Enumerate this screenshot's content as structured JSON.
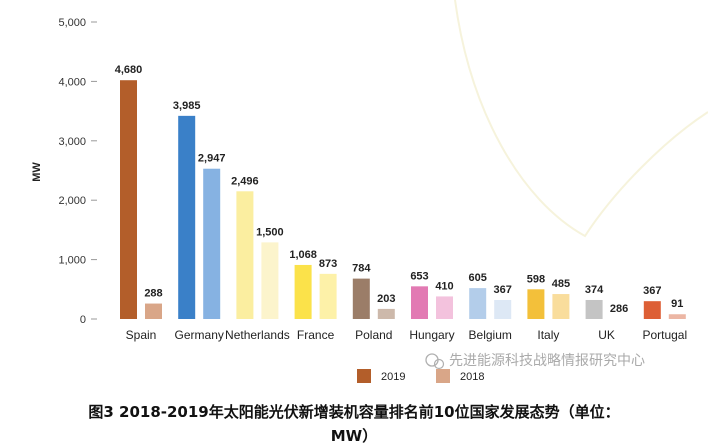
{
  "chart_data": {
    "type": "bar",
    "title": "图3 2018-2019年太阳能光伏新增装机容量排名前10位国家发展态势（单位：MW）",
    "ylabel": "MW",
    "xlabel": "",
    "ylim": [
      0,
      5000
    ],
    "yticks": [
      0,
      1000,
      2000,
      3000,
      4000,
      5000
    ],
    "ytick_labels": [
      "0",
      "1,000",
      "2,000",
      "3,000",
      "4,000",
      "5,000"
    ],
    "categories": [
      "Spain",
      "Germany",
      "Netherlands",
      "France",
      "Poland",
      "Hungary",
      "Belgium",
      "Italy",
      "UK",
      "Portugal"
    ],
    "series": [
      {
        "name": "2019",
        "values": [
          4680,
          3985,
          2496,
          1068,
          784,
          653,
          605,
          598,
          374,
          367
        ],
        "labels": [
          "4,680",
          "3,985",
          "2,496",
          "1,068",
          "784",
          "653",
          "605",
          "598",
          "374",
          "367"
        ],
        "colors": [
          "#b35e2a",
          "#3a80c8",
          "#fbeea0",
          "#fbe24a",
          "#9b7d68",
          "#e27ab3",
          "#b3cdea",
          "#f3c03a",
          "#c4c4c4",
          "#dd5f35"
        ],
        "bar_values": [
          4020,
          3420,
          2150,
          910,
          680,
          550,
          520,
          500,
          320,
          300
        ]
      },
      {
        "name": "2018",
        "values": [
          288,
          2947,
          1500,
          873,
          203,
          410,
          367,
          485,
          286,
          91
        ],
        "labels": [
          "288",
          "2,947",
          "1,500",
          "873",
          "203",
          "410",
          "367",
          "485",
          "286",
          "91"
        ],
        "colors": [
          "#d9a688",
          "#86b2e2",
          "#fcf4cc",
          "#fdf1a8",
          "#cdb9ab",
          "#f3c2dd",
          "#dde8f5",
          "#f9dd9c",
          "#e6e6e6",
          "#ecb6a4"
        ],
        "bar_values": [
          260,
          2530,
          1290,
          760,
          170,
          380,
          320,
          420,
          0,
          80
        ]
      }
    ],
    "legend": [
      {
        "name": "2019",
        "color": "#b35e2a"
      },
      {
        "name": "2018",
        "color": "#d9a688"
      }
    ],
    "legend_position": "bottom-center",
    "grid": false
  },
  "watermark": {
    "text": "先进能源科技战略情报研究中心"
  },
  "caption": {
    "line1": "图3 2018-2019年太阳能光伏新增装机容量排名前10位国家发展态势（单位：",
    "line2": "MW）"
  }
}
